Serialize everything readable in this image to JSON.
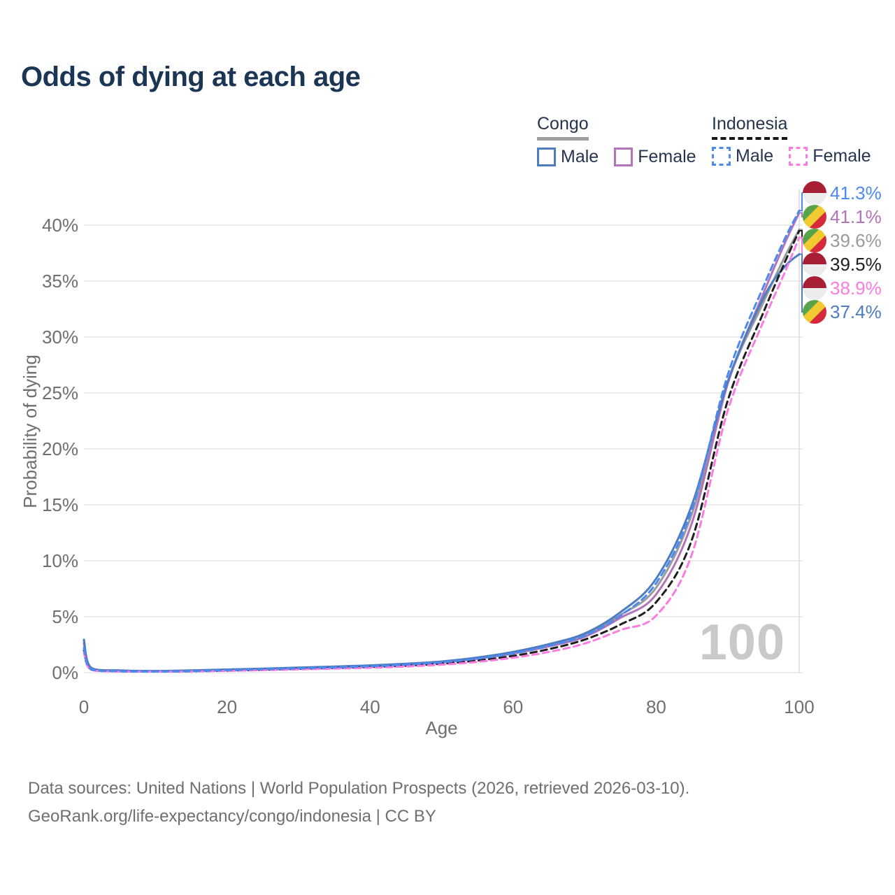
{
  "page": {
    "title": "Odds of dying at each age"
  },
  "legend": {
    "congo": {
      "label": "Congo",
      "male_label": "Male",
      "female_label": "Female",
      "male_color": "#4d7cc1",
      "female_color": "#b273b8",
      "header_line_color": "#9e9e9e",
      "line_style": "solid"
    },
    "indonesia": {
      "label": "Indonesia",
      "male_label": "Male",
      "female_label": "Female",
      "male_color": "#4d8af0",
      "female_color": "#fb7ce1",
      "header_line_color": "#151515",
      "line_style": "dashed"
    }
  },
  "watermark": "100",
  "footer": {
    "line1": "Data sources: United Nations | World Population Prospects (2026, retrieved 2026-03-10).",
    "line2": "GeoRank.org/life-expectancy/congo/indonesia | CC BY"
  },
  "chart_data": {
    "type": "line",
    "title": "Odds of dying at each age",
    "xlabel": "Age",
    "ylabel": "Probability of dying",
    "xlim": [
      0,
      100
    ],
    "ylim_percent": [
      0,
      43
    ],
    "x_ticks": [
      "0",
      "20",
      "40",
      "60",
      "80",
      "100"
    ],
    "x_tick_values": [
      0,
      20,
      40,
      60,
      80,
      100
    ],
    "y_ticks": [
      "0%",
      "5%",
      "10%",
      "15%",
      "20%",
      "25%",
      "30%",
      "35%",
      "40%"
    ],
    "y_tick_values_percent": [
      0,
      5,
      10,
      15,
      20,
      25,
      30,
      35,
      40
    ],
    "grid": "horizontal",
    "grid_color": "#e6e6e6",
    "axis_text_color": "#6f6f6f",
    "hover_age": 100,
    "hover_line_color": "#dcdcdc",
    "ages": [
      0,
      1,
      5,
      10,
      15,
      20,
      25,
      30,
      35,
      40,
      45,
      50,
      55,
      60,
      65,
      70,
      75,
      80,
      85,
      90,
      95,
      98,
      100
    ],
    "series": [
      {
        "name": "Congo",
        "country": "Congo",
        "sex": "Both",
        "line": "solid",
        "color": "#9b9b9b",
        "values_percent": [
          2.8,
          0.42,
          0.18,
          0.14,
          0.18,
          0.26,
          0.34,
          0.42,
          0.52,
          0.62,
          0.76,
          0.97,
          1.3,
          1.78,
          2.45,
          3.35,
          5.15,
          7.6,
          14.2,
          25.9,
          33.1,
          37.2,
          39.6
        ],
        "end_value_label": "39.6%"
      },
      {
        "name": "Congo Female",
        "country": "Congo",
        "sex": "Female",
        "line": "solid",
        "color": "#b273b8",
        "values_percent": [
          2.6,
          0.4,
          0.17,
          0.13,
          0.17,
          0.24,
          0.31,
          0.39,
          0.48,
          0.58,
          0.72,
          0.92,
          1.25,
          1.7,
          2.35,
          3.2,
          4.9,
          7.0,
          13.4,
          25.8,
          33.9,
          38.4,
          41.1
        ],
        "end_value_label": "41.1%"
      },
      {
        "name": "Congo Male",
        "country": "Congo",
        "sex": "Male",
        "line": "solid",
        "color": "#4d7cc1",
        "values_percent": [
          2.95,
          0.45,
          0.2,
          0.15,
          0.2,
          0.28,
          0.36,
          0.45,
          0.55,
          0.65,
          0.8,
          1.0,
          1.35,
          1.85,
          2.55,
          3.5,
          5.4,
          8.4,
          15.0,
          26.0,
          33.5,
          36.3,
          37.4
        ],
        "end_value_label": "37.4%"
      },
      {
        "name": "Indonesia",
        "country": "Indonesia",
        "sex": "Both",
        "line": "dashed",
        "color": "#1f1f1f",
        "values_percent": [
          2.0,
          0.28,
          0.11,
          0.09,
          0.12,
          0.18,
          0.25,
          0.33,
          0.41,
          0.5,
          0.62,
          0.8,
          1.08,
          1.5,
          2.1,
          2.95,
          4.3,
          6.3,
          11.9,
          24.3,
          32.2,
          36.7,
          39.5
        ],
        "end_value_label": "39.5%"
      },
      {
        "name": "Indonesia Female",
        "country": "Indonesia",
        "sex": "Female",
        "line": "dashed",
        "color": "#fb7ce1",
        "values_percent": [
          1.8,
          0.25,
          0.1,
          0.08,
          0.11,
          0.16,
          0.22,
          0.29,
          0.36,
          0.44,
          0.55,
          0.71,
          0.96,
          1.33,
          1.85,
          2.6,
          3.8,
          5.1,
          10.6,
          23.4,
          31.4,
          35.8,
          38.9
        ],
        "end_value_label": "38.9%"
      },
      {
        "name": "Indonesia Male",
        "country": "Indonesia",
        "sex": "Male",
        "line": "dashed",
        "color": "#4d8af0",
        "values_percent": [
          2.2,
          0.3,
          0.13,
          0.1,
          0.14,
          0.22,
          0.3,
          0.38,
          0.47,
          0.57,
          0.72,
          0.92,
          1.25,
          1.72,
          2.4,
          3.3,
          5.1,
          8.0,
          14.6,
          26.6,
          34.5,
          38.8,
          41.3
        ],
        "end_value_label": "41.3%"
      }
    ],
    "right_labels": [
      {
        "series": "Indonesia Male",
        "value": "41.3%",
        "flag": "indonesia",
        "color": "#4d8af0"
      },
      {
        "series": "Congo Female",
        "value": "41.1%",
        "flag": "congo",
        "color": "#b273b8"
      },
      {
        "series": "Congo",
        "value": "39.6%",
        "flag": "congo",
        "color": "#9b9b9b"
      },
      {
        "series": "Indonesia",
        "value": "39.5%",
        "flag": "indonesia",
        "color": "#1f1f1f"
      },
      {
        "series": "Indonesia Female",
        "value": "38.9%",
        "flag": "indonesia",
        "color": "#fb7ce1"
      },
      {
        "series": "Congo Male",
        "value": "37.4%",
        "flag": "congo",
        "color": "#4d7cc1"
      }
    ],
    "legend_position": "top-right"
  }
}
